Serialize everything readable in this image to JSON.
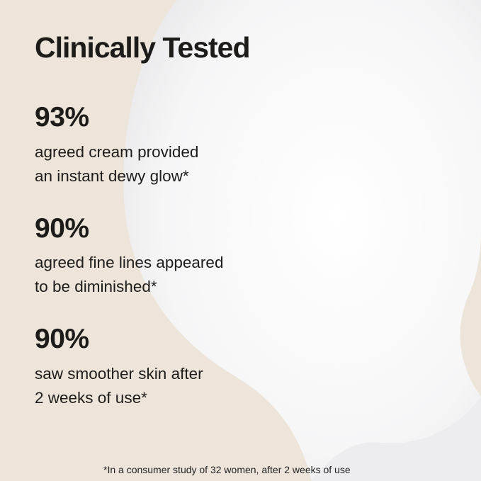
{
  "title": "Clinically Tested",
  "stats": [
    {
      "value": "93%",
      "line1": "agreed cream provided",
      "line2": "an instant dewy glow*"
    },
    {
      "value": "90%",
      "line1": "agreed fine lines appeared",
      "line2": "to be diminished*"
    },
    {
      "value": "90%",
      "line1": "saw smoother skin after",
      "line2": "2 weeks of use*"
    }
  ],
  "footnote": "*In a consumer study of 32 women, after 2 weeks of use",
  "colors": {
    "background": "#ede5da",
    "cream": "#f7f7f8",
    "text": "#1e1c1a"
  }
}
